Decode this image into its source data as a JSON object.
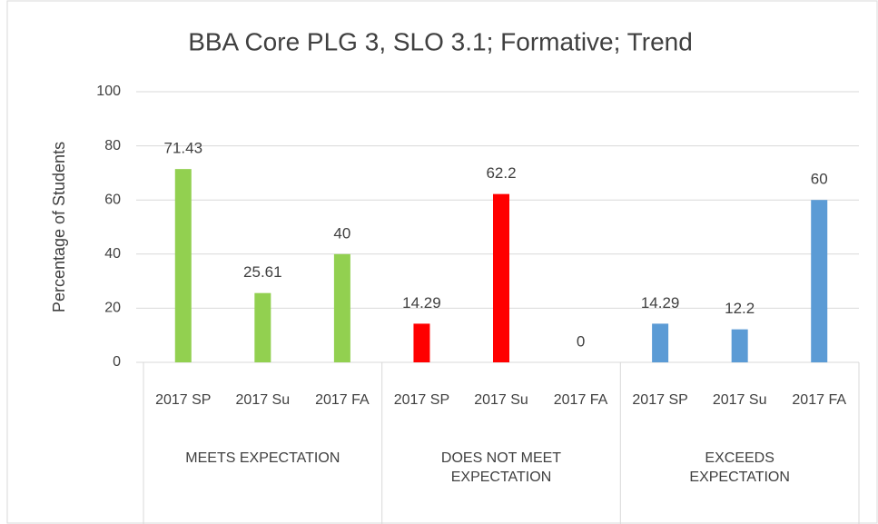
{
  "chart_data": {
    "type": "bar",
    "title": "BBA Core PLG 3, SLO 3.1; Formative; Trend",
    "y_label": "Percentage of Students",
    "groups": [
      {
        "name": "MEETS EXPECTATION",
        "color": "#92d050",
        "categories": [
          "2017 SP",
          "2017 Su",
          "2017 FA"
        ],
        "values": [
          71.43,
          25.61,
          40
        ]
      },
      {
        "name": "DOES NOT MEET EXPECTATION",
        "color": "#ff0000",
        "categories": [
          "2017 SP",
          "2017 Su",
          "2017 FA"
        ],
        "values": [
          14.29,
          62.2,
          0
        ]
      },
      {
        "name": "EXCEEDS EXPECTATION",
        "color": "#5b9bd5",
        "categories": [
          "2017 SP",
          "2017 Su",
          "2017 FA"
        ],
        "values": [
          14.29,
          12.2,
          60
        ]
      }
    ],
    "ylim": [
      0,
      100
    ],
    "yticks": [
      0,
      20,
      40,
      60,
      80,
      100
    ],
    "grid": true
  }
}
